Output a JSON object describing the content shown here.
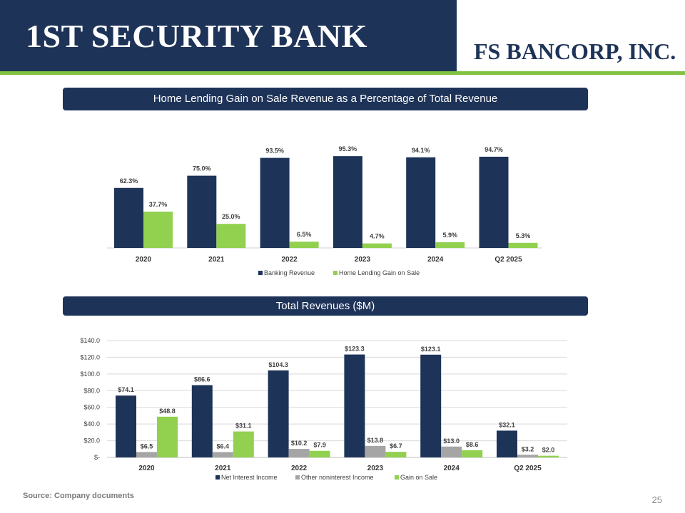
{
  "header": {
    "left_logo": "1ST SECURITY BANK",
    "right_logo": "FS BANCORP, INC.",
    "colors": {
      "navy": "#1e3358",
      "green": "#7fc241"
    }
  },
  "chart_data": [
    {
      "type": "bar",
      "title": "Home Lending Gain on Sale Revenue as a Percentage of Total Revenue",
      "categories": [
        "2020",
        "2021",
        "2022",
        "2023",
        "2024",
        "Q2 2025"
      ],
      "series": [
        {
          "name": "Banking Revenue",
          "color": "#1e3358",
          "values": [
            62.3,
            75.0,
            93.5,
            95.3,
            94.1,
            94.7
          ],
          "labels": [
            "62.3%",
            "75.0%",
            "93.5%",
            "95.3%",
            "94.1%",
            "94.7%"
          ]
        },
        {
          "name": "Home Lending Gain on Sale",
          "color": "#92d050",
          "values": [
            37.7,
            25.0,
            6.5,
            4.7,
            5.9,
            5.3
          ],
          "labels": [
            "37.7%",
            "25.0%",
            "6.5%",
            "4.7%",
            "5.9%",
            "5.3%"
          ]
        }
      ],
      "ylim": [
        0,
        100
      ],
      "grid": false,
      "legend": "bottom"
    },
    {
      "type": "bar",
      "title": "Total Revenues ($M)",
      "categories": [
        "2020",
        "2021",
        "2022",
        "2023",
        "2024",
        "Q2 2025"
      ],
      "series": [
        {
          "name": "Net Interest Income",
          "color": "#1e3358",
          "values": [
            74.1,
            86.6,
            104.3,
            123.3,
            123.1,
            32.1
          ],
          "labels": [
            "$74.1",
            "$86.6",
            "$104.3",
            "$123.3",
            "$123.1",
            "$32.1"
          ]
        },
        {
          "name": "Other noninterest Income",
          "color": "#a5a5a5",
          "values": [
            6.5,
            6.4,
            10.2,
            13.8,
            13.0,
            3.2
          ],
          "labels": [
            "$6.5",
            "$6.4",
            "$10.2",
            "$13.8",
            "$13.0",
            "$3.2"
          ]
        },
        {
          "name": "Gain on Sale",
          "color": "#92d050",
          "values": [
            48.8,
            31.1,
            7.9,
            6.7,
            8.6,
            2.0
          ],
          "labels": [
            "$48.8",
            "$31.1",
            "$7.9",
            "$6.7",
            "$8.6",
            "$2.0"
          ]
        }
      ],
      "ylim": [
        0,
        140
      ],
      "yticks": [
        0,
        20,
        40,
        60,
        80,
        100,
        120,
        140
      ],
      "ytick_labels": [
        "$-",
        "$20.0",
        "$40.0",
        "$60.0",
        "$80.0",
        "$100.0",
        "$120.0",
        "$140.0"
      ],
      "grid": true,
      "legend": "bottom"
    }
  ],
  "footer": {
    "source": "Source: Company documents",
    "page_number": "25"
  }
}
